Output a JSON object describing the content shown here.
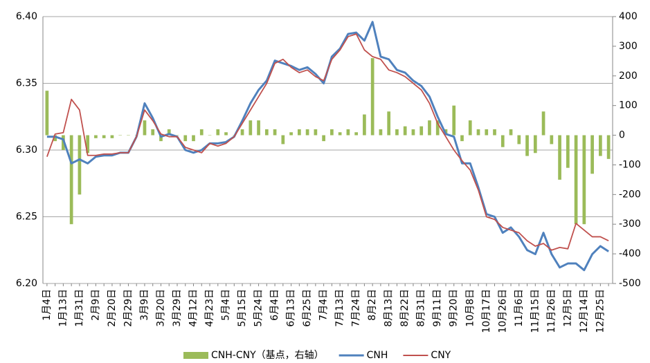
{
  "chart_data": {
    "type": "line",
    "categories": [
      "1月4日",
      null,
      "1月13日",
      null,
      "1月31日",
      null,
      "2月9日",
      null,
      "2月20日",
      null,
      "2月29日",
      null,
      "3月9日",
      null,
      "3月20日",
      null,
      "3月29日",
      null,
      "4月12日",
      null,
      "4月23日",
      null,
      "5月4日",
      null,
      "5月15日",
      null,
      "5月24日",
      null,
      "6月4日",
      null,
      "6月13日",
      null,
      "6月25日",
      null,
      "7月4日",
      null,
      "7月13日",
      null,
      "7月24日",
      null,
      "8月2日",
      null,
      "8月13日",
      null,
      "8月22日",
      null,
      "8月31日",
      null,
      "9月11日",
      null,
      "9月20日",
      null,
      "10月8日",
      null,
      "10月17日",
      null,
      "10月26日",
      null,
      "11月6日",
      null,
      "11月15日",
      null,
      "11月26日",
      null,
      "12月5日",
      null,
      "12月14日",
      null,
      "12月25日",
      null
    ],
    "series": [
      {
        "name": "CNH-CNY（基点，右轴）",
        "type": "bar",
        "axis": "y2",
        "color": "#9bbb59",
        "values": [
          150,
          -20,
          -50,
          -300,
          -200,
          -60,
          -10,
          -10,
          -10,
          0,
          0,
          0,
          50,
          20,
          -20,
          20,
          0,
          -20,
          -20,
          20,
          0,
          20,
          10,
          0,
          20,
          50,
          50,
          20,
          20,
          -30,
          10,
          20,
          20,
          20,
          -20,
          20,
          10,
          20,
          10,
          70,
          260,
          20,
          80,
          20,
          30,
          20,
          30,
          50,
          50,
          20,
          100,
          -20,
          50,
          20,
          20,
          20,
          -40,
          20,
          -30,
          -70,
          -60,
          80,
          -30,
          -150,
          -110,
          -300,
          -300,
          -130,
          -70,
          -80
        ]
      },
      {
        "name": "CNH",
        "type": "line",
        "color": "#4f81bd",
        "values": [
          6.31,
          6.31,
          6.308,
          6.29,
          6.293,
          6.29,
          6.295,
          6.296,
          6.296,
          6.298,
          6.298,
          6.31,
          6.335,
          6.324,
          6.31,
          6.312,
          6.31,
          6.3,
          6.298,
          6.3,
          6.305,
          6.305,
          6.306,
          6.31,
          6.322,
          6.335,
          6.345,
          6.352,
          6.367,
          6.365,
          6.363,
          6.36,
          6.362,
          6.357,
          6.35,
          6.37,
          6.376,
          6.387,
          6.388,
          6.382,
          6.396,
          6.37,
          6.368,
          6.36,
          6.358,
          6.352,
          6.348,
          6.34,
          6.325,
          6.312,
          6.31,
          6.29,
          6.29,
          6.272,
          6.252,
          6.25,
          6.238,
          6.242,
          6.235,
          6.225,
          6.222,
          6.238,
          6.222,
          6.212,
          6.215,
          6.215,
          6.21,
          6.222,
          6.228,
          6.224
        ]
      },
      {
        "name": "CNY",
        "type": "line",
        "color": "#c0504d",
        "values": [
          6.295,
          6.312,
          6.313,
          6.338,
          6.33,
          6.296,
          6.296,
          6.297,
          6.297,
          6.298,
          6.298,
          6.31,
          6.33,
          6.322,
          6.312,
          6.31,
          6.31,
          6.302,
          6.3,
          6.298,
          6.305,
          6.303,
          6.305,
          6.31,
          6.32,
          6.33,
          6.34,
          6.35,
          6.365,
          6.368,
          6.362,
          6.358,
          6.36,
          6.355,
          6.352,
          6.368,
          6.375,
          6.385,
          6.387,
          6.375,
          6.37,
          6.368,
          6.36,
          6.358,
          6.355,
          6.35,
          6.345,
          6.335,
          6.32,
          6.31,
          6.3,
          6.292,
          6.285,
          6.27,
          6.25,
          6.248,
          6.242,
          6.24,
          6.238,
          6.232,
          6.228,
          6.23,
          6.225,
          6.227,
          6.226,
          6.245,
          6.24,
          6.235,
          6.235,
          6.232
        ]
      }
    ],
    "ylim": [
      6.2,
      6.4
    ],
    "yticks": [
      {
        "value": 6.2,
        "label": "6.20"
      },
      {
        "value": 6.25,
        "label": "6.25"
      },
      {
        "value": 6.3,
        "label": "6.30"
      },
      {
        "value": 6.35,
        "label": "6.35"
      },
      {
        "value": 6.4,
        "label": "6.40"
      }
    ],
    "y2lim": [
      -500,
      400
    ],
    "y2ticks": [
      -500,
      -400,
      -300,
      -200,
      -100,
      0,
      100,
      200,
      300,
      400
    ],
    "grid": true,
    "legend": "bottom"
  }
}
